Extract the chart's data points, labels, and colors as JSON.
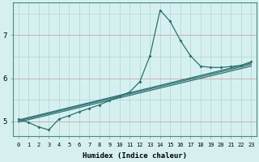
{
  "xlabel": "Humidex (Indice chaleur)",
  "bg_color": "#d6f0f0",
  "line_color": "#2d7070",
  "grid_color": "#aed4d4",
  "grid_color_major": "#c8a0a0",
  "xlim": [
    -0.5,
    23.5
  ],
  "ylim": [
    4.65,
    7.75
  ],
  "yticks": [
    5,
    6,
    7
  ],
  "xticks": [
    0,
    1,
    2,
    3,
    4,
    5,
    6,
    7,
    8,
    9,
    10,
    11,
    12,
    13,
    14,
    15,
    16,
    17,
    18,
    19,
    20,
    21,
    22,
    23
  ],
  "line_peak": {
    "x": [
      0,
      1,
      2,
      3,
      4,
      5,
      6,
      7,
      8,
      9,
      10,
      11,
      12,
      13,
      14,
      15,
      16,
      17,
      18,
      19,
      20,
      21,
      22,
      23
    ],
    "y": [
      5.05,
      4.97,
      4.87,
      4.8,
      5.05,
      5.13,
      5.22,
      5.3,
      5.38,
      5.48,
      5.58,
      5.68,
      5.92,
      6.52,
      7.58,
      7.32,
      6.88,
      6.52,
      6.28,
      6.25,
      6.25,
      6.27,
      6.3,
      6.38
    ]
  },
  "line_a": {
    "x": [
      0,
      23
    ],
    "y": [
      5.03,
      6.35
    ]
  },
  "line_b": {
    "x": [
      0,
      23
    ],
    "y": [
      5.01,
      6.32
    ]
  },
  "line_c": {
    "x": [
      0,
      23
    ],
    "y": [
      4.98,
      6.28
    ]
  }
}
